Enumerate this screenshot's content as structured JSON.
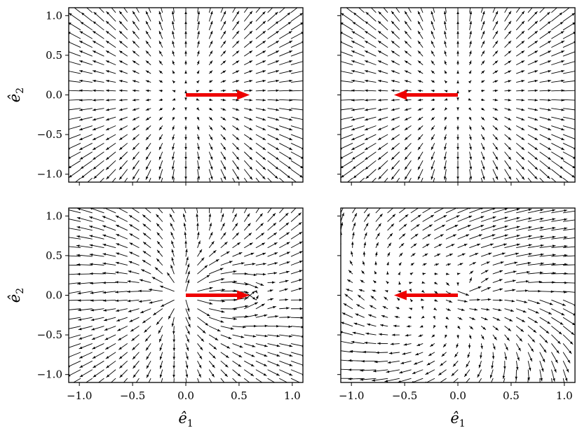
{
  "figure": {
    "axis_labels": {
      "x": "ê",
      "x_sub": "1",
      "y": "ê",
      "y_sub": "2"
    }
  },
  "chart_data": [
    {
      "type": "quiver",
      "panel": "top-left",
      "xlim": [
        -1.1,
        1.1
      ],
      "ylim": [
        -1.1,
        1.1
      ],
      "xticks": [
        "−1.0",
        "−0.5",
        "0.0",
        "0.5",
        "1.0"
      ],
      "yticks": [
        "−1.0",
        "−0.5",
        "0.0",
        "0.5",
        "1.0"
      ],
      "xtick_labels_visible": false,
      "ytick_labels_visible": true,
      "xlabel": "",
      "ylabel": "ê2",
      "field": "source",
      "source_point": [
        0.0,
        0.0
      ],
      "highlight_arrow": {
        "from": [
          0.0,
          0.0
        ],
        "to": [
          0.6,
          0.0
        ],
        "color": "#ee0000"
      }
    },
    {
      "type": "quiver",
      "panel": "top-right",
      "xlim": [
        -1.1,
        1.1
      ],
      "ylim": [
        -1.1,
        1.1
      ],
      "xticks": [
        "−1.0",
        "−0.5",
        "0.0",
        "0.5",
        "1.0"
      ],
      "yticks": [
        "−1.0",
        "−0.5",
        "0.0",
        "0.5",
        "1.0"
      ],
      "xtick_labels_visible": false,
      "ytick_labels_visible": false,
      "xlabel": "",
      "ylabel": "",
      "field": "source",
      "source_point": [
        0.0,
        0.0
      ],
      "highlight_arrow": {
        "from": [
          0.0,
          0.0
        ],
        "to": [
          -0.6,
          0.0
        ],
        "color": "#ee0000"
      }
    },
    {
      "type": "quiver",
      "panel": "bottom-left",
      "xlim": [
        -1.1,
        1.1
      ],
      "ylim": [
        -1.1,
        1.1
      ],
      "xticks": [
        "−1.0",
        "−0.5",
        "0.0",
        "0.5",
        "1.0"
      ],
      "yticks": [
        "−1.0",
        "−0.5",
        "0.0",
        "0.5",
        "1.0"
      ],
      "xtick_labels_visible": true,
      "ytick_labels_visible": true,
      "xlabel": "ê1",
      "ylabel": "ê2",
      "field": "shifted-flow",
      "source_point": [
        0.0,
        0.0
      ],
      "sink_point": [
        0.55,
        0.0
      ],
      "highlight_arrow": {
        "from": [
          0.0,
          0.0
        ],
        "to": [
          0.6,
          0.0
        ],
        "color": "#ee0000"
      }
    },
    {
      "type": "quiver",
      "panel": "bottom-right",
      "xlim": [
        -1.1,
        1.1
      ],
      "ylim": [
        -1.1,
        1.1
      ],
      "xticks": [
        "−1.0",
        "−0.5",
        "0.0",
        "0.5",
        "1.0"
      ],
      "yticks": [
        "−1.0",
        "−0.5",
        "0.0",
        "0.5",
        "1.0"
      ],
      "xtick_labels_visible": true,
      "ytick_labels_visible": false,
      "xlabel": "ê1",
      "ylabel": "",
      "field": "swirl",
      "source_point": [
        0.0,
        0.0
      ],
      "highlight_arrow": {
        "from": [
          0.0,
          0.0
        ],
        "to": [
          -0.6,
          0.0
        ],
        "color": "#ee0000"
      }
    }
  ]
}
